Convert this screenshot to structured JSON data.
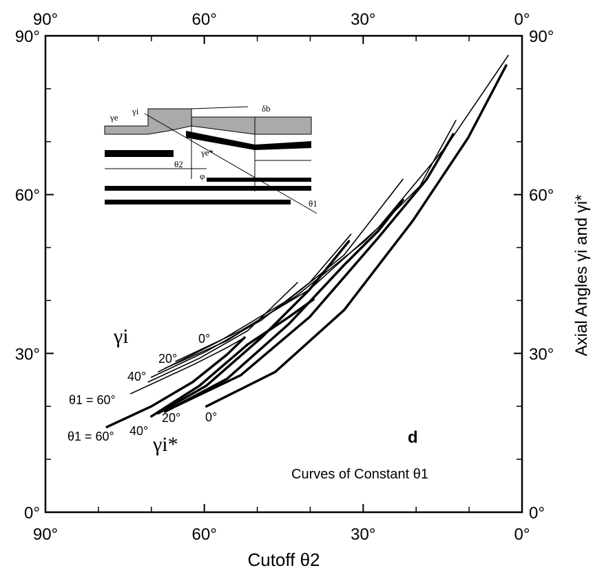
{
  "chart_data": {
    "type": "line",
    "x_label": "Cutoff θ2",
    "y_label": "Axial Angles γi and γi*",
    "xlim": [
      90,
      0
    ],
    "ylim": [
      0,
      90
    ],
    "xticks": [
      {
        "value": 90,
        "label": "90°"
      },
      {
        "value": 60,
        "label": "60°"
      },
      {
        "value": 30,
        "label": "30°"
      },
      {
        "value": 0,
        "label": "0°"
      }
    ],
    "yticks": [
      {
        "value": 0,
        "label": "0°"
      },
      {
        "value": 30,
        "label": "30°"
      },
      {
        "value": 60,
        "label": "60°"
      },
      {
        "value": 90,
        "label": "90°"
      }
    ],
    "minor_ticks": [
      80,
      70,
      50,
      40,
      20,
      10
    ],
    "color": "#000000",
    "series": [
      {
        "x": [
          59.6,
          46.6,
          33.6,
          20.6,
          10.2,
          3.0
        ],
        "values": [
          20.0,
          26.5,
          38.2,
          55.1,
          70.7,
          84.4
        ]
      },
      {
        "x": [
          66.7,
          53.1,
          40.1,
          27.1,
          18.0,
          13.0
        ],
        "values": [
          19.4,
          25.9,
          36.9,
          51.9,
          62.9,
          71.4
        ]
      },
      {
        "x": [
          67.4,
          55.7,
          44.0,
          33.6,
          27.1,
          22.5
        ],
        "values": [
          19.0,
          25.2,
          35.6,
          46.7,
          53.2,
          59.0
        ]
      },
      {
        "x": [
          68.7,
          59.6,
          49.2,
          40.1,
          32.7
        ],
        "values": [
          18.7,
          23.9,
          33.0,
          42.1,
          51.2
        ]
      },
      {
        "x": [
          70.0,
          60.9,
          51.8,
          44.0,
          39.4
        ],
        "values": [
          18.1,
          23.9,
          31.7,
          36.9,
          40.2
        ]
      },
      {
        "x": [
          78.4,
          70.0,
          62.2,
          55.7,
          52.4
        ],
        "values": [
          16.1,
          20.0,
          24.6,
          29.8,
          33.0
        ]
      },
      {
        "x": [
          65.4,
          53.1,
          40.1,
          27.1,
          14.1,
          2.6
        ],
        "values": [
          28.5,
          34.3,
          42.1,
          53.8,
          69.4,
          86.3
        ]
      },
      {
        "x": [
          67.4,
          55.7,
          42.7,
          29.7,
          19.3,
          12.5
        ],
        "values": [
          27.2,
          32.4,
          40.8,
          51.2,
          61.6,
          74.0
        ]
      },
      {
        "x": [
          68.7,
          57.0,
          44.0,
          33.6,
          22.5
        ],
        "values": [
          26.5,
          32.4,
          40.2,
          48.6,
          62.9
        ]
      },
      {
        "x": [
          70.0,
          59.6,
          49.2,
          40.1,
          32.3
        ],
        "values": [
          25.5,
          30.4,
          36.3,
          43.4,
          52.5
        ]
      },
      {
        "x": [
          70.6,
          60.9,
          51.8,
          42.4
        ],
        "values": [
          24.6,
          29.1,
          34.3,
          43.4
        ]
      },
      {
        "x": [
          73.9,
          62.2,
          55.7,
          52.4
        ],
        "values": [
          22.4,
          27.8,
          31.1,
          33.0
        ]
      }
    ],
    "annotations": [
      "γi",
      "20°",
      "0°",
      "40°",
      "θ1 = 60°",
      "θ1 = 60°",
      "40°",
      "20°",
      "0°",
      "γi*",
      "d",
      "Curves of Constant θ1"
    ],
    "inset_labels": [
      "γe",
      "γi",
      "δb",
      "γe*",
      "θ2",
      "φ",
      "θ1"
    ]
  }
}
